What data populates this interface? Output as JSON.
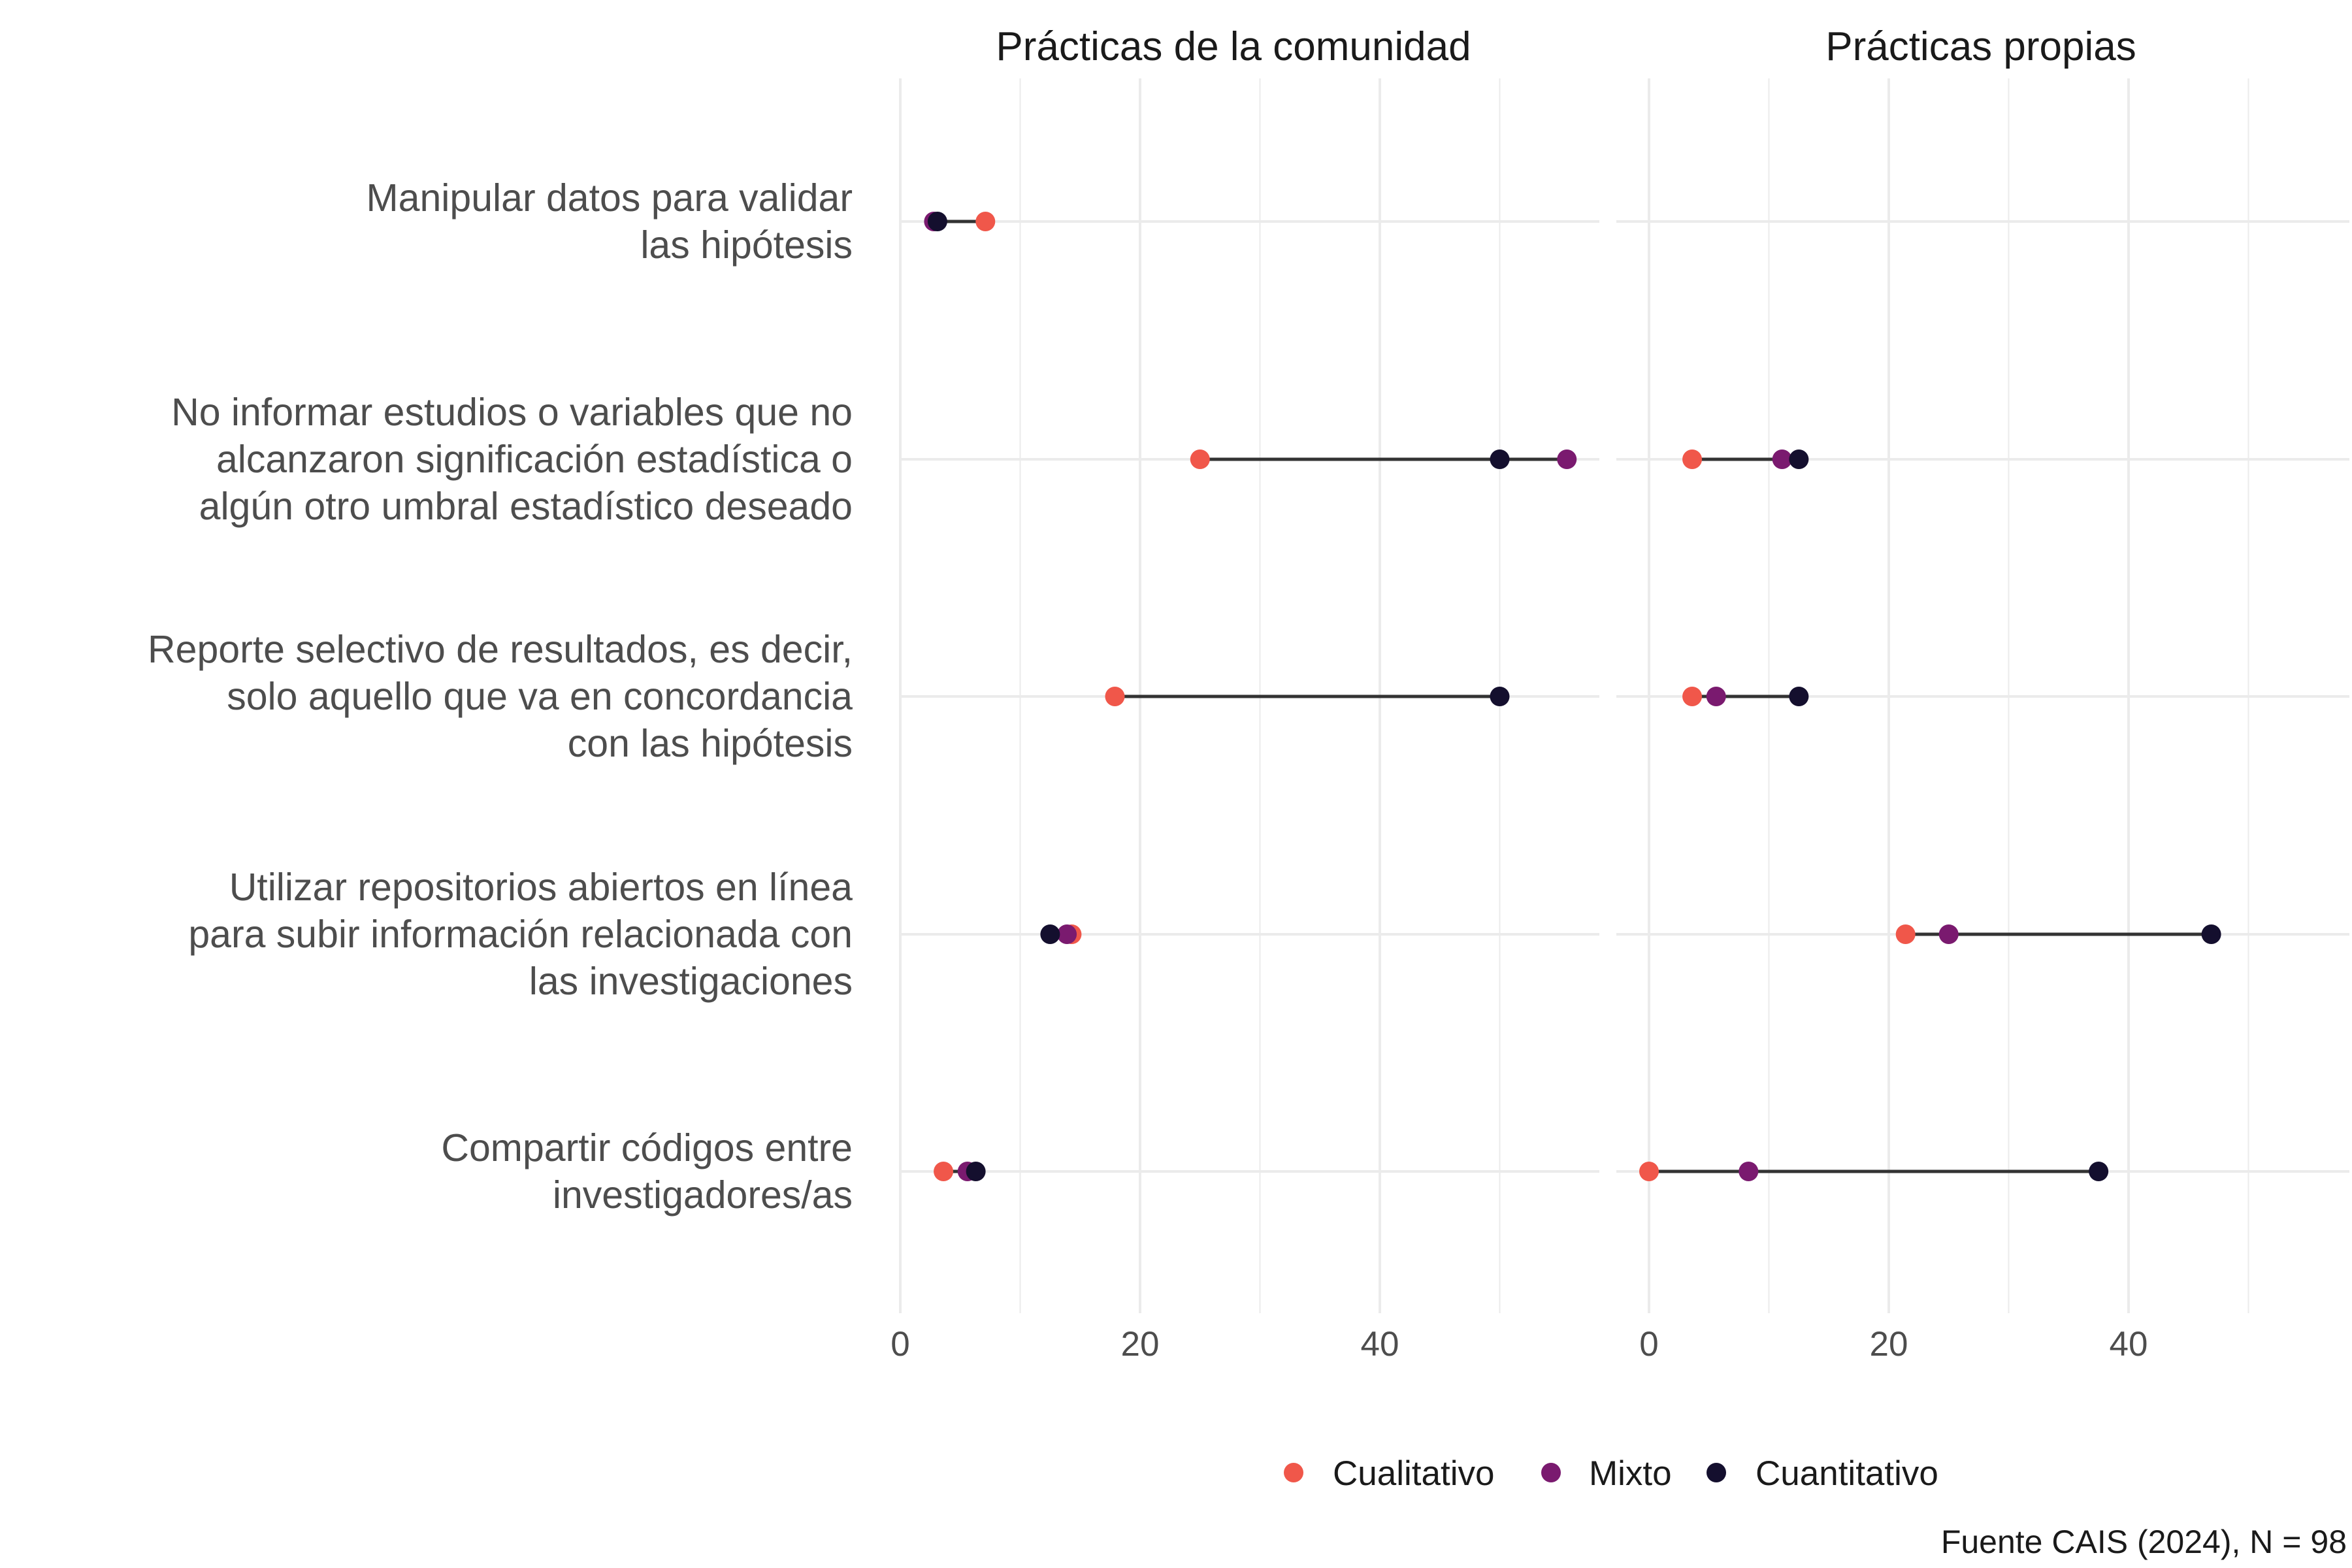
{
  "chart_data": {
    "type": "dumbbell",
    "facets": [
      "Prácticas de la comunidad",
      "Prácticas propias"
    ],
    "categories": [
      "Manipular datos para validar\nlas hipótesis",
      "No informar estudios o variables que no\nalcanzaron significación estadística o\nalgún otro umbral estadístico deseado",
      "Reporte selectivo de resultados, es decir,\nsolo aquello que va en concordancia\ncon las hipótesis",
      "Utilizar repositorios abiertos en línea\npara subir información relacionada con\nlas investigaciones",
      "Compartir códigos entre\ninvestigadores/as"
    ],
    "series": [
      {
        "name": "Cualitativo",
        "color": "#f0574a",
        "values": {
          "Prácticas de la comunidad": [
            7.1,
            25.0,
            17.9,
            14.3,
            3.6
          ],
          "Prácticas propias": [
            null,
            3.6,
            3.6,
            21.4,
            0.0
          ]
        }
      },
      {
        "name": "Mixto",
        "color": "#7a1a6f",
        "values": {
          "Prácticas de la comunidad": [
            2.8,
            55.6,
            null,
            13.9,
            5.6
          ],
          "Prácticas propias": [
            null,
            11.1,
            5.6,
            25.0,
            8.3
          ]
        }
      },
      {
        "name": "Cuantitativo",
        "color": "#140f2e",
        "values": {
          "Prácticas de la comunidad": [
            3.1,
            50.0,
            50.0,
            12.5,
            6.3
          ],
          "Prácticas propias": [
            null,
            12.5,
            12.5,
            46.9,
            37.5
          ]
        }
      }
    ],
    "xticks": [
      0,
      20,
      40
    ],
    "xlim": [
      0,
      58
    ],
    "grid": true,
    "legend_position": "bottom",
    "caption": "Fuente CAIS (2024), N = 98"
  }
}
